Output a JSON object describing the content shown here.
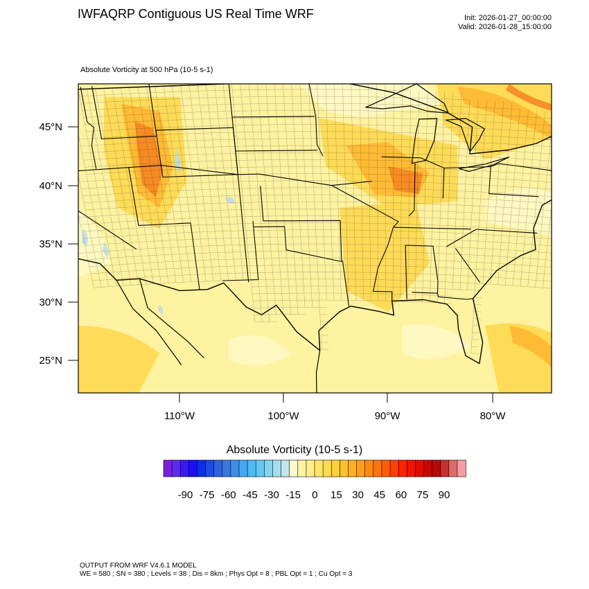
{
  "header": {
    "title": "IWFAQRP Contiguous US Real Time WRF",
    "init": "Init: 2026-01-27_00:00:00",
    "valid": "Valid: 2026-01-28_15:00:00",
    "subtitle": "Absolute Vorticity at 500 hPa   (10-5 s-1)"
  },
  "map": {
    "lat_ticks": [
      "45°N",
      "40°N",
      "35°N",
      "30°N",
      "25°N"
    ],
    "lon_ticks": [
      "110°W",
      "100°W",
      "90°W",
      "80°W"
    ],
    "lat_values": [
      45,
      40,
      35,
      30,
      25
    ],
    "lon_values": [
      -110,
      -100,
      -90,
      -80
    ],
    "field_colors": {
      "background": "#fff2a0",
      "light": "#fff9c6",
      "moderate": "#ffd84a",
      "strong": "#ffb52e",
      "max": "#f58220",
      "negative": "#b8dcec",
      "boundary": "#000000"
    }
  },
  "colorbar": {
    "title": "Absolute Vorticity  (10-5 s-1)",
    "labels": [
      "-90",
      "-75",
      "-60",
      "-45",
      "-30",
      "-15",
      "0",
      "15",
      "30",
      "45",
      "60",
      "75",
      "90"
    ],
    "colors": [
      "#7a1fe0",
      "#5a2cf0",
      "#3a18f5",
      "#1a10f8",
      "#0a2ef0",
      "#1e4ae8",
      "#2f62e0",
      "#3a78dc",
      "#3f8ee8",
      "#46a6f2",
      "#4cbaf4",
      "#64c8f2",
      "#84d4ee",
      "#a4deec",
      "#c2e6ee",
      "#fffacc",
      "#fff4a6",
      "#ffee88",
      "#ffe66a",
      "#ffdc4c",
      "#ffd03a",
      "#ffc22c",
      "#ffb020",
      "#ff9e18",
      "#ff8a12",
      "#ff740e",
      "#ff5c0a",
      "#ff4006",
      "#ff2204",
      "#f81000",
      "#e40a00",
      "#cc0600",
      "#b80808",
      "#c83030",
      "#e06a6a",
      "#f4a0a0"
    ]
  },
  "footer": {
    "line1": "OUTPUT FROM WRF V4.6.1 MODEL",
    "line2": "WE = 580 ; SN = 380 ; Levels = 38 ; Dis = 8km ; Phys Opt = 8 ; PBL Opt = 1 ; Cu Opt = 3"
  }
}
